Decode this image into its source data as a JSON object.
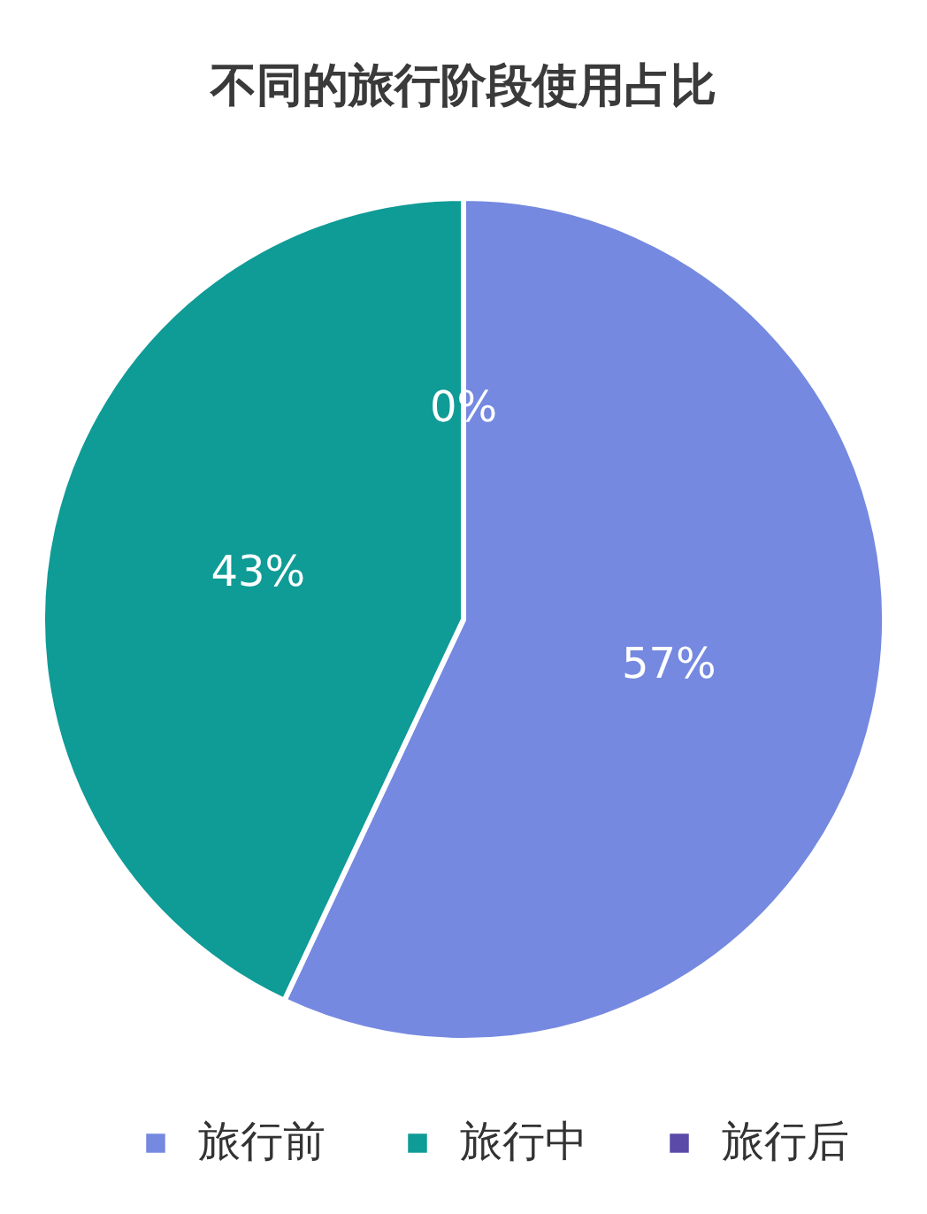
{
  "chart_data": {
    "type": "pie",
    "title": "不同的旅行阶段使用占比",
    "categories": [
      "旅行前",
      "旅行中",
      "旅行后"
    ],
    "values": [
      57,
      43,
      0
    ],
    "colors": [
      "#7589e0",
      "#0f9b96",
      "#5b4aa8"
    ],
    "value_labels": [
      "57%",
      "43%",
      "0%"
    ],
    "legend": "bottom"
  }
}
